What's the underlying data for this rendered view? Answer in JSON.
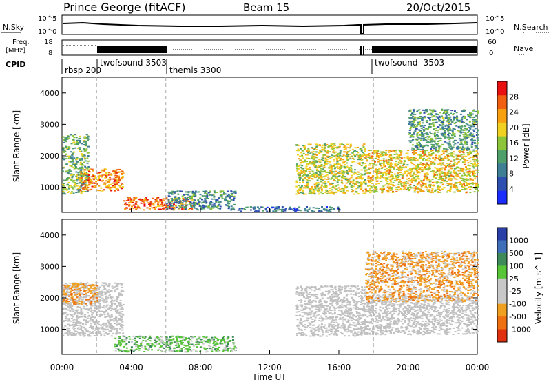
{
  "header": {
    "station": "Prince George (fitACF)",
    "beam": "Beam 15",
    "date": "20/Oct/2015"
  },
  "top_panels": {
    "nsky_label": "N.Sky",
    "nsky_ticks": [
      "10^5",
      "10^0"
    ],
    "nsearch_label": "N.Search",
    "nsearch_ticks": [
      "10^5",
      "10^0"
    ],
    "freq_label_1": "Freq.",
    "freq_label_2": "[MHz]",
    "freq_ticks": [
      "18",
      "8"
    ],
    "nave_label": "Nave",
    "nave_ticks": [
      "60",
      "0"
    ],
    "cpid_label": "CPID",
    "cpid_entries": [
      {
        "label": "rbsp 200",
        "start_hour": 0.0
      },
      {
        "label": "twofsound 3503",
        "start_hour": 2.0
      },
      {
        "label": "themis 3300",
        "start_hour": 6.0
      },
      {
        "label": "twofsound -3503",
        "start_hour": 18.0
      }
    ]
  },
  "colors": {
    "power": [
      "#1a2cff",
      "#2f4fb0",
      "#3f7f95",
      "#4f9f6a",
      "#8cc43a",
      "#f0d020",
      "#f7a010",
      "#f06010",
      "#e81010"
    ],
    "velocity": [
      "#2a3ea8",
      "#3f6fb8",
      "#3f8a5a",
      "#58c438",
      "#c8c8c8",
      "#c8c8c8",
      "#f0a020",
      "#ef7010",
      "#e03010",
      "#d81010"
    ],
    "ground_scatter": "#c0c0c0"
  },
  "chart_data": [
    {
      "type": "heatmap",
      "panel": "power",
      "ylabel": "Slant Range [km]",
      "yticks": [
        "1000",
        "2000",
        "3000",
        "4000"
      ],
      "ylim": [
        200,
        4500
      ],
      "xlim": [
        0,
        24
      ],
      "colorbar_label": "Power [dB]",
      "colorbar_ticks": [
        "4",
        "8",
        "12",
        "16",
        "20",
        "24",
        "28"
      ],
      "colorbar_range": [
        0,
        32
      ],
      "echo_regions": [
        {
          "x": [
            0.0,
            1.5
          ],
          "y": [
            800,
            2700
          ],
          "value": 14
        },
        {
          "x": [
            1.0,
            3.5
          ],
          "y": [
            900,
            1600
          ],
          "value": 24
        },
        {
          "x": [
            3.5,
            7.5
          ],
          "y": [
            300,
            700
          ],
          "value": 26
        },
        {
          "x": [
            6.0,
            10.0
          ],
          "y": [
            300,
            900
          ],
          "value": 10
        },
        {
          "x": [
            10.0,
            16.0
          ],
          "y": [
            250,
            400
          ],
          "value": 8
        },
        {
          "x": [
            13.5,
            17.5
          ],
          "y": [
            800,
            2400
          ],
          "value": 18
        },
        {
          "x": [
            17.5,
            24.0
          ],
          "y": [
            850,
            2200
          ],
          "value": 20
        },
        {
          "x": [
            20.0,
            24.0
          ],
          "y": [
            2200,
            3500
          ],
          "value": 12
        }
      ]
    },
    {
      "type": "heatmap",
      "panel": "velocity",
      "ylabel": "Slant Range [km]",
      "yticks": [
        "1000",
        "2000",
        "3000",
        "4000"
      ],
      "ylim": [
        200,
        4500
      ],
      "xlim": [
        0,
        24
      ],
      "xlabel": "Time UT",
      "xticks": [
        "00:00",
        "04:00",
        "08:00",
        "12:00",
        "16:00",
        "20:00",
        "00:00"
      ],
      "colorbar_label": "Velocity [m s^-1]",
      "colorbar_ticks": [
        "1000",
        "500",
        "100",
        "25",
        "-25",
        "-100",
        "-500",
        "-1000"
      ],
      "echo_regions": [
        {
          "x": [
            0.0,
            3.5
          ],
          "y": [
            800,
            2500
          ],
          "value": "ground scatter"
        },
        {
          "x": [
            0.0,
            2.0
          ],
          "y": [
            1800,
            2500
          ],
          "value": -200
        },
        {
          "x": [
            3.0,
            10.0
          ],
          "y": [
            300,
            800
          ],
          "value": 80
        },
        {
          "x": [
            13.5,
            17.5
          ],
          "y": [
            800,
            2400
          ],
          "value": "ground scatter"
        },
        {
          "x": [
            17.5,
            24.0
          ],
          "y": [
            850,
            2100
          ],
          "value": "ground scatter"
        },
        {
          "x": [
            17.5,
            24.0
          ],
          "y": [
            1900,
            3500
          ],
          "value": -150
        }
      ]
    }
  ]
}
